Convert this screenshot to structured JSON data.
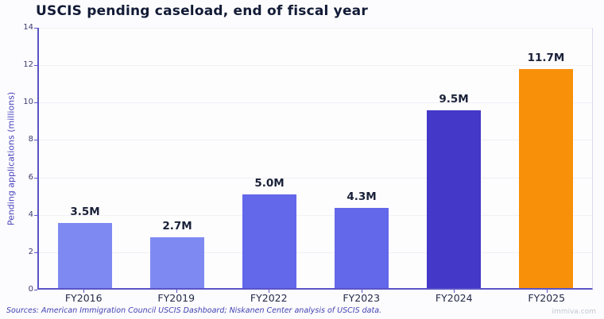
{
  "header": {
    "title": "USCIS pending caseload, end of fiscal year"
  },
  "footer": {
    "sources": "Sources: American Immigration Council USCIS Dashboard; Niskanen Center analysis of USCIS data.",
    "watermark": "immiva.com"
  },
  "chart_data": {
    "type": "bar",
    "title": "USCIS pending caseload, end of fiscal year",
    "categories": [
      "FY2016",
      "FY2019",
      "FY2022",
      "FY2023",
      "FY2024",
      "FY2025"
    ],
    "values": [
      3.5,
      2.7,
      5.0,
      4.3,
      9.5,
      11.7
    ],
    "value_labels": [
      "3.5M",
      "2.7M",
      "5.0M",
      "4.3M",
      "9.5M",
      "11.7M"
    ],
    "bar_colors": [
      "#7e8af2",
      "#7e8af2",
      "#6367e9",
      "#6367e9",
      "#4338c8",
      "#f8900a"
    ],
    "xlabel": "",
    "ylabel": "Pending applications (millions)",
    "ylim": [
      0,
      14
    ],
    "yticks": [
      0,
      2,
      4,
      6,
      8,
      10,
      12,
      14
    ],
    "grid": true,
    "legend": "none",
    "style_colors": {
      "axis": "#5b54c6",
      "grid": "#f0f0f6",
      "title_text": "#121b36",
      "value_label_text": "#1a2138",
      "x_tick_text": "#252a47",
      "y_tick_text": "#3d3a6e",
      "y_axis_title_text": "#4a44bc",
      "sources_text": "#4241b2",
      "watermark_text": "#c3c7d1",
      "background": "#fcfcfe"
    }
  }
}
